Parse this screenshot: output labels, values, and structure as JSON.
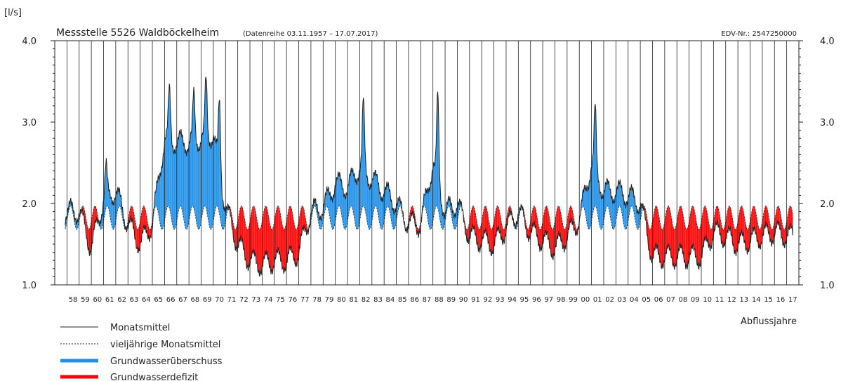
{
  "chart_data": {
    "type": "area",
    "unit_label": "[l/s]",
    "title": "Messstelle 5526 Waldböckelheim",
    "subtitle": "(Datenreihe 03.11.1957  –  17.07.2017)",
    "edv_label": "EDV-Nr.: 2547250000",
    "xlabel": "Abflussjahre",
    "ylim": [
      1.0,
      4.0
    ],
    "y_ticks": [
      "1.0",
      "2.0",
      "3.0",
      "4.0"
    ],
    "y_ticks_right": [
      "1.0",
      "2.0",
      "3.0",
      "4.0"
    ],
    "x_start_year": 1958,
    "x_end_year": 2017,
    "x_tick_labels": [
      "58",
      "59",
      "60",
      "61",
      "62",
      "63",
      "64",
      "65",
      "66",
      "67",
      "68",
      "69",
      "70",
      "71",
      "72",
      "73",
      "74",
      "75",
      "76",
      "77",
      "78",
      "79",
      "80",
      "81",
      "82",
      "83",
      "84",
      "85",
      "86",
      "87",
      "88",
      "89",
      "90",
      "91",
      "92",
      "93",
      "94",
      "95",
      "96",
      "97",
      "98",
      "99",
      "00",
      "01",
      "02",
      "03",
      "04",
      "05",
      "06",
      "07",
      "08",
      "09",
      "10",
      "11",
      "12",
      "13",
      "14",
      "15",
      "16",
      "17"
    ],
    "series": [
      {
        "name": "Monatsmittel",
        "style": "solid",
        "color": "#222222"
      },
      {
        "name": "vieljährige Monatsmittel",
        "style": "dotted",
        "color": "#222222",
        "seasonal_min": 1.68,
        "seasonal_max": 1.97
      },
      {
        "name": "Grundwasserüberschuss",
        "fill": "#1e90e8"
      },
      {
        "name": "Grundwasserdefizit",
        "fill": "#ff0000"
      }
    ],
    "annual_level": [
      1.9,
      1.9,
      1.45,
      2.05,
      2.15,
      1.75,
      1.5,
      1.75,
      2.8,
      2.75,
      2.75,
      2.8,
      2.85,
      1.95,
      1.5,
      1.3,
      1.25,
      1.3,
      1.3,
      1.4,
      1.9,
      1.95,
      2.25,
      2.2,
      2.45,
      2.3,
      2.15,
      2.0,
      1.75,
      1.75,
      2.5,
      1.9,
      2.0,
      1.6,
      1.55,
      1.5,
      1.7,
      1.9,
      1.65,
      1.55,
      1.45,
      1.6,
      1.8,
      2.5,
      2.15,
      2.15,
      2.1,
      2.0,
      1.35,
      1.35,
      1.35,
      1.35,
      1.35,
      1.65,
      1.6,
      1.5,
      1.55,
      1.6,
      1.65,
      1.6
    ],
    "peaks": [
      {
        "year": 1961.2,
        "value": 2.42
      },
      {
        "year": 1966.4,
        "value": 3.35
      },
      {
        "year": 1968.4,
        "value": 3.3
      },
      {
        "year": 1969.4,
        "value": 3.48
      },
      {
        "year": 1970.5,
        "value": 3.25
      },
      {
        "year": 1982.3,
        "value": 3.2
      },
      {
        "year": 1988.4,
        "value": 3.3
      },
      {
        "year": 2001.3,
        "value": 3.12
      }
    ],
    "grid": "vertical"
  },
  "legend": {
    "items": [
      {
        "label": "Monatsmittel",
        "swatch": "solid-line"
      },
      {
        "label": "vieljährige Monatsmittel",
        "swatch": "dotted-line"
      },
      {
        "label": "Grundwasserüberschuss",
        "swatch": "blue-bar"
      },
      {
        "label": "Grundwasserdefizit",
        "swatch": "red-bar"
      }
    ]
  }
}
